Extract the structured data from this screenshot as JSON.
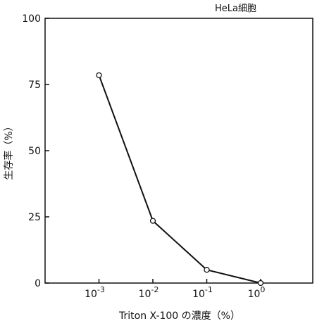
{
  "chart_data": {
    "type": "line",
    "annotation": "HeLa細胞",
    "xlabel": "Triton X-100 の濃度（%）",
    "ylabel": "生存率（%）",
    "x_scale": "log",
    "x": [
      0.001,
      0.01,
      0.1,
      1
    ],
    "x_tick_labels": [
      {
        "base": "10",
        "exp": "-3"
      },
      {
        "base": "10",
        "exp": "-2"
      },
      {
        "base": "10",
        "exp": "-1"
      },
      {
        "base": "10",
        "exp": "0"
      }
    ],
    "series": [
      {
        "values": [
          78.5,
          23.5,
          5,
          0
        ]
      }
    ],
    "y_ticks": [
      "0",
      "25",
      "50",
      "75",
      "100"
    ],
    "ylim": [
      0,
      100
    ],
    "grid": false,
    "marker": "open-circle"
  }
}
